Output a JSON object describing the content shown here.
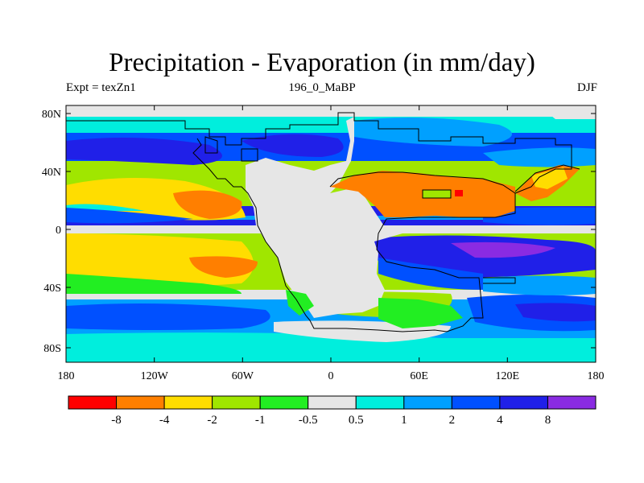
{
  "header": {
    "title": "Precipitation - Evaporation (in mm/day)",
    "left_label": "Expt = texZn1",
    "center_label": "196_0_MaBP",
    "right_label": "DJF"
  },
  "map": {
    "lat_ticks": [
      "80N",
      "40N",
      "0",
      "40S",
      "80S"
    ],
    "lon_ticks": [
      "180",
      "120W",
      "60W",
      "0",
      "60E",
      "120E",
      "180"
    ]
  },
  "legend": {
    "colors": [
      "#ff0000",
      "#ff7f00",
      "#ffdd00",
      "#a0e600",
      "#22ee22",
      "#e6e6e6",
      "#00eedd",
      "#00a0ff",
      "#0050ff",
      "#2020e8",
      "#8a2be2"
    ],
    "labels": [
      "-8",
      "-4",
      "-2",
      "-1",
      "-0.5",
      "0.5",
      "1",
      "2",
      "4",
      "8"
    ]
  },
  "palette": {
    "land": "#e6e6e6",
    "frame": "#000000"
  }
}
